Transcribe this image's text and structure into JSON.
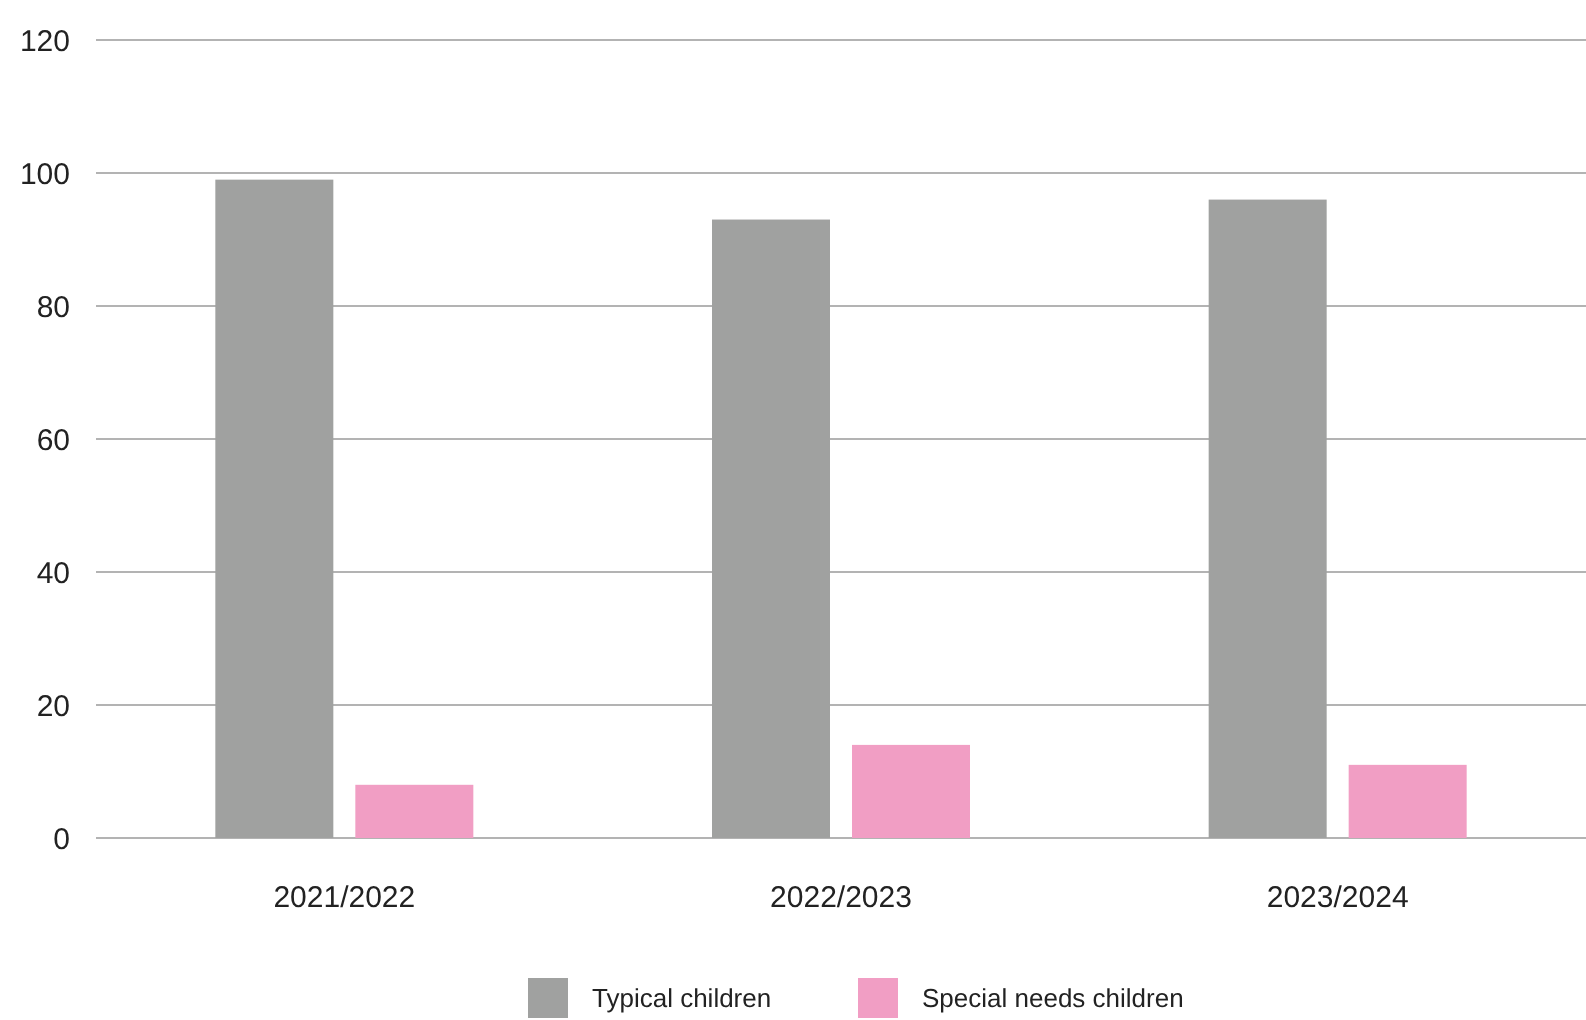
{
  "chart_data": {
    "type": "bar",
    "categories": [
      "2021/2022",
      "2022/2023",
      "2023/2024"
    ],
    "series": [
      {
        "name": "Typical children",
        "color": "#a0a1a0",
        "values": [
          99,
          93,
          96
        ]
      },
      {
        "name": "Special needs children",
        "color": "#f19ec4",
        "values": [
          8,
          14,
          11
        ]
      }
    ],
    "ylim": [
      0,
      120
    ],
    "yticks": [
      0,
      20,
      40,
      60,
      80,
      100,
      120
    ],
    "grid": "y",
    "legend": "bottom"
  }
}
